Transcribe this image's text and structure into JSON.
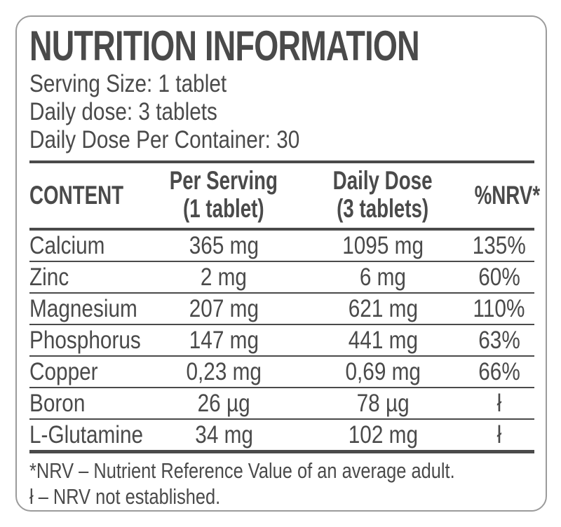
{
  "theme": {
    "text-color": "#4a4a4a",
    "border-color": "#9b9b9b"
  },
  "label": {
    "title": "NUTRITION INFORMATION",
    "serving_lines": [
      "Serving Size: 1 tablet",
      "Daily dose: 3 tablets",
      "Daily Dose Per Container: 30"
    ],
    "table": {
      "headers": {
        "content": "CONTENT",
        "per_serving": "Per Serving\n(1 tablet)",
        "daily_dose": "Daily Dose\n(3 tablets)",
        "nrv": "%NRV*"
      },
      "rows": [
        {
          "name": "Calcium",
          "per_serving": "365 mg",
          "daily_dose": "1095 mg",
          "nrv": "135%"
        },
        {
          "name": "Zinc",
          "per_serving": "2 mg",
          "daily_dose": "6 mg",
          "nrv": "60%"
        },
        {
          "name": "Magnesium",
          "per_serving": "207 mg",
          "daily_dose": "621 mg",
          "nrv": "110%"
        },
        {
          "name": "Phosphorus",
          "per_serving": "147 mg",
          "daily_dose": "441 mg",
          "nrv": "63%"
        },
        {
          "name": "Copper",
          "per_serving": "0,23 mg",
          "daily_dose": "0,69 mg",
          "nrv": "66%"
        },
        {
          "name": "Boron",
          "per_serving": "26 µg",
          "daily_dose": "78 µg",
          "nrv": "ł"
        },
        {
          "name": "L-Glutamine",
          "per_serving": "34 mg",
          "daily_dose": "102 mg",
          "nrv": "ł"
        }
      ]
    },
    "footnotes": [
      "*NRV – Nutrient Reference Value of an average adult.",
      "ł – NRV not established."
    ]
  }
}
